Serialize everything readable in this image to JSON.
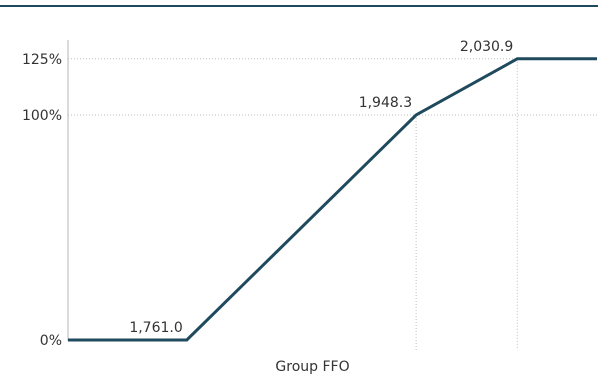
{
  "header": {
    "title": ""
  },
  "chart_data": {
    "type": "line",
    "title": "",
    "xlabel": "Group FFO",
    "ylabel": "",
    "grid": "dotted reference lines at breakpoints",
    "series": [
      {
        "points": [
          {
            "x": 1664.0,
            "y": 0
          },
          {
            "x": 1761.0,
            "y": 0
          },
          {
            "x": 1948.3,
            "y": 100
          },
          {
            "x": 2030.9,
            "y": 125
          },
          {
            "x": 2096.0,
            "y": 125
          }
        ],
        "color": "#1f4a5e"
      }
    ],
    "y_ticks": [
      {
        "value": 0,
        "label": "0%"
      },
      {
        "value": 100,
        "label": "100%"
      },
      {
        "value": 125,
        "label": "125%"
      }
    ],
    "data_labels": [
      {
        "x": 1761.0,
        "y": 0,
        "text": "1,761.0"
      },
      {
        "x": 1948.3,
        "y": 100,
        "text": "1,948.3"
      },
      {
        "x": 2030.9,
        "y": 125,
        "text": "2,030.9"
      }
    ],
    "colors": {
      "line": "#1f4a5e",
      "axis": "#b5b5b5",
      "grid": "#bdbdbd",
      "header_rule": "#1f4a5e"
    }
  }
}
